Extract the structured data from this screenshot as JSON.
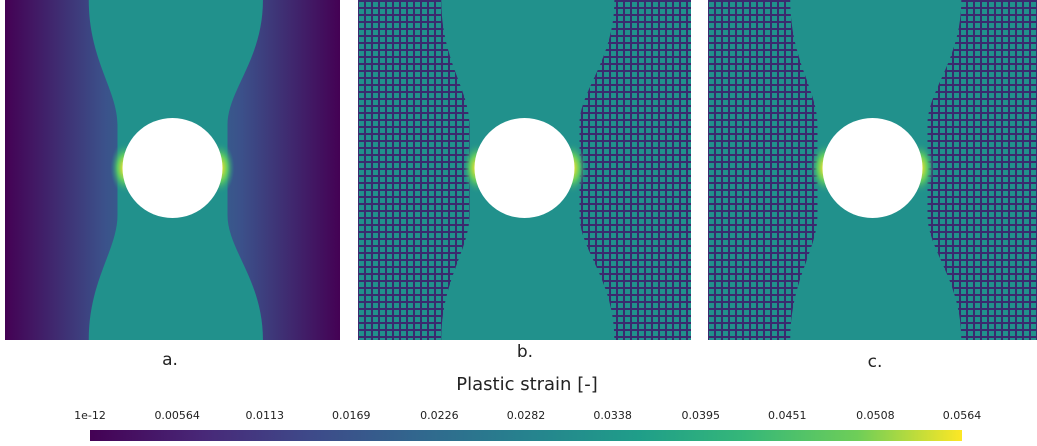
{
  "panels": [
    {
      "label": "a."
    },
    {
      "label": "b."
    },
    {
      "label": "c."
    }
  ],
  "colorbar": {
    "title": "Plastic strain [-]",
    "range": [
      1e-12,
      0.0564
    ],
    "ticks": [
      {
        "value": 1e-12,
        "label": "1e-12"
      },
      0.00564,
      0.0113,
      0.0169,
      0.0226,
      0.0282,
      0.0338,
      0.0395,
      0.0451,
      0.0508,
      0.0564
    ]
  }
}
